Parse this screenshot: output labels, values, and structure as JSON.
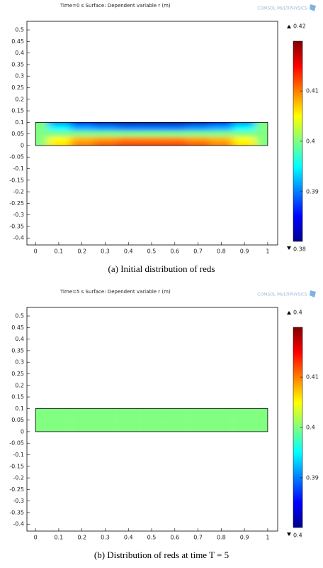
{
  "chart_data": [
    {
      "type": "surface",
      "title": "Time=0 s   Surface: Dependent variable r (m)",
      "watermark": "COMSOL MULTIPHYSICS",
      "caption": "(a) Initial distribution of reds",
      "xlim": [
        -0.037,
        1.043
      ],
      "ylim": [
        -0.43,
        0.537
      ],
      "xticks": [
        0,
        0.1,
        0.2,
        0.3,
        0.4,
        0.5,
        0.6,
        0.7,
        0.8,
        0.9,
        1
      ],
      "yticks": [
        0.5,
        0.45,
        0.4,
        0.35,
        0.3,
        0.25,
        0.2,
        0.15,
        0.1,
        0.05,
        0,
        -0.05,
        -0.1,
        -0.15,
        -0.2,
        -0.25,
        -0.3,
        -0.35,
        -0.4
      ],
      "clim": [
        0.3801,
        0.4199
      ],
      "colorbar_max": 0.42,
      "colorbar_min": 0.38,
      "cticks": [
        0.41,
        0.4,
        0.39
      ],
      "surface": {
        "x": [
          0,
          0.1,
          0.2,
          0.3,
          0.4,
          0.5,
          0.6,
          0.7,
          0.8,
          0.9,
          1
        ],
        "y": [
          0,
          0.025,
          0.05,
          0.075,
          0.1
        ],
        "values": [
          [
            0.4,
            0.406,
            0.41,
            0.412,
            0.413,
            0.413,
            0.413,
            0.412,
            0.41,
            0.406,
            0.4
          ],
          [
            0.4,
            0.405,
            0.408,
            0.409,
            0.41,
            0.41,
            0.41,
            0.409,
            0.408,
            0.405,
            0.4
          ],
          [
            0.4,
            0.4,
            0.4,
            0.4,
            0.4,
            0.4,
            0.4,
            0.4,
            0.4,
            0.4,
            0.4
          ],
          [
            0.4,
            0.395,
            0.392,
            0.391,
            0.39,
            0.39,
            0.39,
            0.391,
            0.392,
            0.395,
            0.4
          ],
          [
            0.4,
            0.391,
            0.386,
            0.383,
            0.382,
            0.382,
            0.382,
            0.383,
            0.386,
            0.391,
            0.4
          ]
        ]
      }
    },
    {
      "type": "surface",
      "title": "Time=5 s   Surface: Dependent variable r (m)",
      "watermark": "COMSOL MULTIPHYSICS",
      "caption": "(b) Distribution of reds at time T = 5",
      "xlim": [
        -0.037,
        1.043
      ],
      "ylim": [
        -0.43,
        0.537
      ],
      "xticks": [
        0,
        0.1,
        0.2,
        0.3,
        0.4,
        0.5,
        0.6,
        0.7,
        0.8,
        0.9,
        1
      ],
      "yticks": [
        0.5,
        0.45,
        0.4,
        0.35,
        0.3,
        0.25,
        0.2,
        0.15,
        0.1,
        0.05,
        0,
        -0.05,
        -0.1,
        -0.15,
        -0.2,
        -0.25,
        -0.3,
        -0.35,
        -0.4
      ],
      "clim": [
        0.3801,
        0.4199
      ],
      "colorbar_max": 0.4,
      "colorbar_min": 0.4,
      "cticks": [
        0.41,
        0.4,
        0.39
      ],
      "surface": {
        "x": [
          0,
          0.1,
          0.2,
          0.3,
          0.4,
          0.5,
          0.6,
          0.7,
          0.8,
          0.9,
          1
        ],
        "y": [
          0,
          0.025,
          0.05,
          0.075,
          0.1
        ],
        "values": [
          [
            0.4,
            0.4,
            0.4,
            0.4,
            0.4,
            0.4,
            0.4,
            0.4,
            0.4,
            0.4,
            0.4
          ],
          [
            0.4,
            0.4,
            0.4,
            0.4,
            0.4,
            0.4,
            0.4,
            0.4,
            0.4,
            0.4,
            0.4
          ],
          [
            0.4,
            0.4,
            0.4,
            0.4,
            0.4,
            0.4,
            0.4,
            0.4,
            0.4,
            0.4,
            0.4
          ],
          [
            0.4,
            0.4,
            0.4,
            0.4,
            0.4,
            0.4,
            0.4,
            0.4,
            0.4,
            0.4,
            0.4
          ],
          [
            0.4,
            0.4,
            0.4,
            0.4,
            0.4,
            0.4,
            0.4,
            0.4,
            0.4,
            0.4,
            0.4
          ]
        ]
      }
    }
  ]
}
